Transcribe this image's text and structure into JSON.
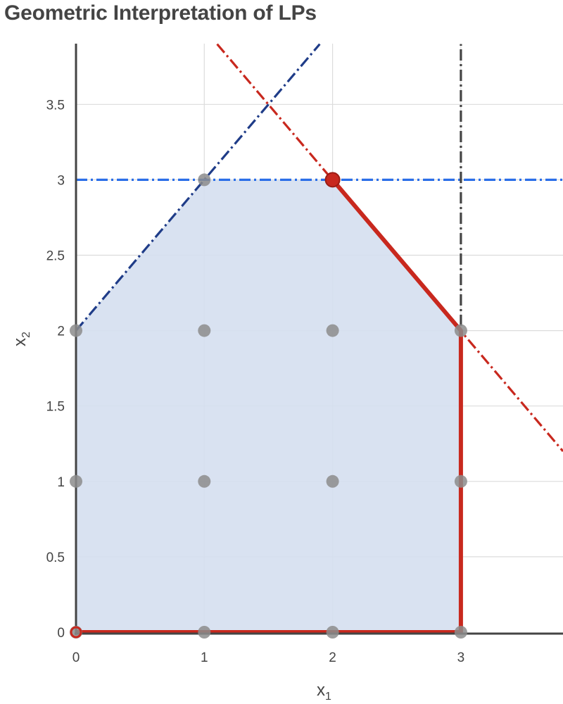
{
  "chart_data": {
    "type": "line",
    "title": "Geometric Interpretation of LPs",
    "xlabel": {
      "base": "x",
      "sub": "1"
    },
    "ylabel": {
      "base": "x",
      "sub": "2"
    },
    "xlim": [
      0,
      3.8
    ],
    "ylim": [
      0,
      3.9
    ],
    "x_ticks": [
      0,
      1,
      2,
      3
    ],
    "x_tick_labels": [
      "0",
      "1",
      "2",
      "3"
    ],
    "y_ticks": [
      0,
      0.5,
      1,
      1.5,
      2,
      2.5,
      3,
      3.5
    ],
    "y_tick_labels": [
      "0",
      "0.5",
      "1",
      "1.5",
      "2",
      "2.5",
      "3",
      "3.5"
    ],
    "grid": true,
    "feasible_region": {
      "vertices": [
        [
          0,
          0
        ],
        [
          0,
          2
        ],
        [
          1,
          3
        ],
        [
          2,
          3
        ],
        [
          3,
          2
        ],
        [
          3,
          0
        ]
      ],
      "fill": "#d5dff0"
    },
    "constraint_lines": [
      {
        "id": "upper-slope",
        "points": [
          [
            0,
            2
          ],
          [
            1.9,
            3.9
          ]
        ],
        "color": "#1f3c88",
        "dash": "dashdot"
      },
      {
        "id": "horizontal-cap",
        "points": [
          [
            0,
            3
          ],
          [
            3.8,
            3
          ]
        ],
        "color": "#2a6ee8",
        "dash": "dashdot"
      },
      {
        "id": "down-slope",
        "points": [
          [
            1.1,
            3.9
          ],
          [
            3.8,
            1.2
          ]
        ],
        "color": "#c8281e",
        "dash": "dashdot"
      },
      {
        "id": "vertical-bound",
        "points": [
          [
            3,
            0
          ],
          [
            3,
            3.9
          ]
        ],
        "color": "#444444",
        "dash": "dashdot"
      }
    ],
    "highlighted_boundary": {
      "points": [
        [
          2,
          3
        ],
        [
          3,
          2
        ],
        [
          3,
          0
        ],
        [
          0,
          0
        ]
      ],
      "color": "#c8281e"
    },
    "integer_points": [
      [
        0,
        0
      ],
      [
        1,
        0
      ],
      [
        2,
        0
      ],
      [
        3,
        0
      ],
      [
        0,
        1
      ],
      [
        1,
        1
      ],
      [
        2,
        1
      ],
      [
        3,
        1
      ],
      [
        0,
        2
      ],
      [
        1,
        2
      ],
      [
        2,
        2
      ],
      [
        3,
        2
      ],
      [
        1,
        3
      ],
      [
        2,
        3
      ]
    ],
    "integer_point_color": "#8c8c8c",
    "optimal_point": {
      "x": 2,
      "y": 3,
      "color": "#c8281e"
    },
    "origin_marker": {
      "x": 0,
      "y": 0,
      "color": "#c8281e"
    },
    "axis_color": "#444444",
    "grid_color": "#dcdcdc"
  }
}
